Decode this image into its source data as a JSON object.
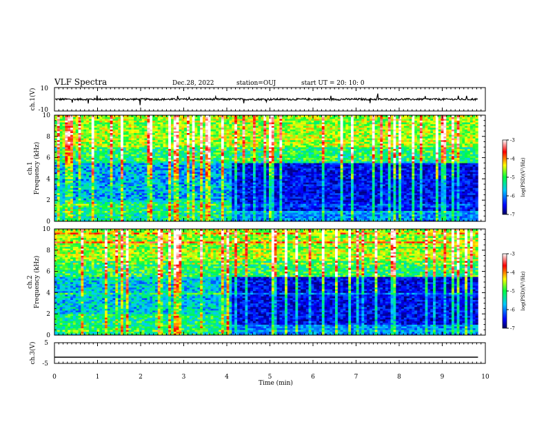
{
  "header": {
    "title": "VLF Spectra",
    "date": "Dec.28, 2022",
    "station": "station=OUJ",
    "start_ut": "start  UT =   20: 10: 0"
  },
  "chart_data": [
    {
      "type": "line",
      "panel": "waveform ch.1",
      "ylabel": "ch.1(V)",
      "ylim": [
        -10,
        10
      ],
      "ytick_labels": [
        "10",
        "-10"
      ],
      "series": [
        {
          "values_approx": "noise around 0 V, roughly within ±1 V, occasional short spikes"
        }
      ]
    },
    {
      "type": "heatmap",
      "panel": "spectrogram ch.1",
      "ylabel": "ch.1\nFrequency (kHz)",
      "ylim": [
        0,
        10
      ],
      "ytick_labels": [
        "0",
        "2",
        "4",
        "6",
        "8",
        "10"
      ],
      "colorbar": {
        "label": "log(PSD)(V²/Hz)",
        "range": [
          -7,
          -3
        ],
        "tick_labels": [
          "-3",
          "-4",
          "-5",
          "-6",
          "-7"
        ],
        "colors": [
          "#000080",
          "#0000ff",
          "#00ffff",
          "#00ff00",
          "#ffff00",
          "#ff0000",
          "#ffffff"
        ]
      },
      "regime_change_min": 4.1
    },
    {
      "type": "heatmap",
      "panel": "spectrogram ch.2",
      "ylabel": "ch.2\nFrequency (kHz)",
      "ylim": [
        0,
        10
      ],
      "ytick_labels": [
        "0",
        "2",
        "4",
        "6",
        "8",
        "10"
      ],
      "colorbar": {
        "label": "log(PSD)(V²/Hz)",
        "range": [
          -7,
          -3
        ],
        "tick_labels": [
          "-3",
          "-4",
          "-5",
          "-6",
          "-7"
        ]
      },
      "regime_change_min": 4.1
    },
    {
      "type": "line",
      "panel": "waveform ch.3",
      "ylabel": "ch.3(V)",
      "ylim": [
        -5,
        5
      ],
      "ytick_labels": [
        "5",
        "-5"
      ],
      "series": [
        {
          "constant_value": -2
        }
      ]
    }
  ],
  "xaxis": {
    "label": "Time (min)",
    "range": [
      0,
      10
    ],
    "tick_labels": [
      "0",
      "1",
      "2",
      "3",
      "4",
      "5",
      "6",
      "7",
      "8",
      "9",
      "10"
    ],
    "data_end_min": 9.83
  },
  "colors": {
    "line": "#000000",
    "background": "#ffffff"
  }
}
